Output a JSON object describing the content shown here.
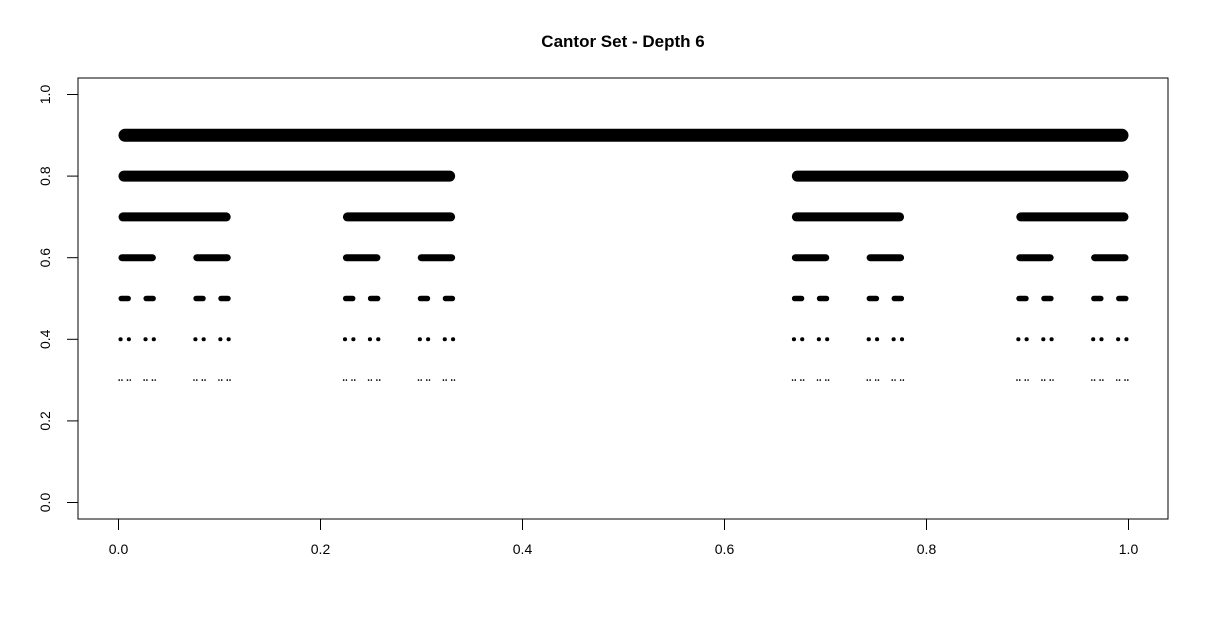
{
  "chart_data": {
    "type": "line",
    "title": "Cantor Set - Depth 6",
    "xlabel": "",
    "ylabel": "",
    "xlim": [
      0,
      1
    ],
    "ylim": [
      0,
      1
    ],
    "x_ticks": [
      0.0,
      0.2,
      0.4,
      0.6,
      0.8,
      1.0
    ],
    "x_tick_labels": [
      "0.0",
      "0.2",
      "0.4",
      "0.6",
      "0.8",
      "1.0"
    ],
    "y_ticks": [
      0.0,
      0.2,
      0.4,
      0.6,
      0.8,
      1.0
    ],
    "y_tick_labels": [
      "0.0",
      "0.2",
      "0.4",
      "0.6",
      "0.8",
      "1.0"
    ],
    "grid": false,
    "legend": "none",
    "line_color": "#000000",
    "depth": 6,
    "levels": [
      {
        "y": 0.9,
        "segments": [
          [
            0,
            1
          ]
        ]
      },
      {
        "y": 0.8,
        "segments": [
          [
            0,
            0.3333
          ],
          [
            0.6667,
            1
          ]
        ]
      },
      {
        "y": 0.7,
        "segments": [
          [
            0,
            0.1111
          ],
          [
            0.2222,
            0.3333
          ],
          [
            0.6667,
            0.7778
          ],
          [
            0.8889,
            1
          ]
        ]
      },
      {
        "y": 0.6,
        "segments": [
          [
            0,
            0.037
          ],
          [
            0.0741,
            0.1111
          ],
          [
            0.2222,
            0.2593
          ],
          [
            0.2963,
            0.3333
          ],
          [
            0.6667,
            0.7037
          ],
          [
            0.7407,
            0.7778
          ],
          [
            0.8889,
            0.9259
          ],
          [
            0.963,
            1
          ]
        ]
      },
      {
        "y": 0.5,
        "segments": [
          [
            0,
            0.0123
          ],
          [
            0.0247,
            0.037
          ],
          [
            0.0741,
            0.0864
          ],
          [
            0.0988,
            0.1111
          ],
          [
            0.2222,
            0.2346
          ],
          [
            0.2469,
            0.2593
          ],
          [
            0.2963,
            0.3086
          ],
          [
            0.321,
            0.3333
          ],
          [
            0.6667,
            0.679
          ],
          [
            0.6914,
            0.7037
          ],
          [
            0.7407,
            0.7531
          ],
          [
            0.7654,
            0.7778
          ],
          [
            0.8889,
            0.9012
          ],
          [
            0.9136,
            0.9259
          ],
          [
            0.963,
            0.9753
          ],
          [
            0.9877,
            1
          ]
        ]
      },
      {
        "y": 0.4,
        "segments": [
          [
            0,
            0.0041
          ],
          [
            0.0082,
            0.0123
          ],
          [
            0.0247,
            0.0288
          ],
          [
            0.0329,
            0.037
          ],
          [
            0.0741,
            0.0782
          ],
          [
            0.0823,
            0.0864
          ],
          [
            0.0988,
            0.1029
          ],
          [
            0.107,
            0.1111
          ],
          [
            0.2222,
            0.2263
          ],
          [
            0.2305,
            0.2346
          ],
          [
            0.2469,
            0.251
          ],
          [
            0.2551,
            0.2593
          ],
          [
            0.2963,
            0.3004
          ],
          [
            0.3045,
            0.3086
          ],
          [
            0.321,
            0.3251
          ],
          [
            0.3292,
            0.3333
          ],
          [
            0.6667,
            0.6708
          ],
          [
            0.6749,
            0.679
          ],
          [
            0.6914,
            0.6955
          ],
          [
            0.6996,
            0.7037
          ],
          [
            0.7407,
            0.7449
          ],
          [
            0.749,
            0.7531
          ],
          [
            0.7654,
            0.7695
          ],
          [
            0.7737,
            0.7778
          ],
          [
            0.8889,
            0.893
          ],
          [
            0.8971,
            0.9012
          ],
          [
            0.9136,
            0.9177
          ],
          [
            0.9218,
            0.9259
          ],
          [
            0.963,
            0.9671
          ],
          [
            0.9712,
            0.9753
          ],
          [
            0.9877,
            0.9918
          ],
          [
            0.9959,
            1
          ]
        ]
      },
      {
        "y": 0.3,
        "segments": [
          [
            0,
            0.0014
          ],
          [
            0.0027,
            0.0041
          ],
          [
            0.0082,
            0.0096
          ],
          [
            0.011,
            0.0123
          ],
          [
            0.0247,
            0.0261
          ],
          [
            0.0274,
            0.0288
          ],
          [
            0.0329,
            0.0343
          ],
          [
            0.0357,
            0.037
          ],
          [
            0.0741,
            0.0754
          ],
          [
            0.0768,
            0.0782
          ],
          [
            0.0823,
            0.0837
          ],
          [
            0.085,
            0.0864
          ],
          [
            0.0988,
            0.1001
          ],
          [
            0.1015,
            0.1029
          ],
          [
            0.107,
            0.1084
          ],
          [
            0.1097,
            0.1111
          ],
          [
            0.2222,
            0.2236
          ],
          [
            0.225,
            0.2263
          ],
          [
            0.2305,
            0.2318
          ],
          [
            0.2332,
            0.2346
          ],
          [
            0.2469,
            0.2483
          ],
          [
            0.2497,
            0.251
          ],
          [
            0.2551,
            0.2565
          ],
          [
            0.2579,
            0.2593
          ],
          [
            0.2963,
            0.2977
          ],
          [
            0.299,
            0.3004
          ],
          [
            0.3045,
            0.3059
          ],
          [
            0.3073,
            0.3086
          ],
          [
            0.321,
            0.3224
          ],
          [
            0.3237,
            0.3251
          ],
          [
            0.3292,
            0.3306
          ],
          [
            0.332,
            0.3333
          ],
          [
            0.6667,
            0.668
          ],
          [
            0.6694,
            0.6708
          ],
          [
            0.6749,
            0.6763
          ],
          [
            0.6776,
            0.679
          ],
          [
            0.6914,
            0.6927
          ],
          [
            0.6941,
            0.6955
          ],
          [
            0.6996,
            0.701
          ],
          [
            0.7023,
            0.7037
          ],
          [
            0.7407,
            0.7421
          ],
          [
            0.7435,
            0.7449
          ],
          [
            0.749,
            0.7503
          ],
          [
            0.7517,
            0.7531
          ],
          [
            0.7654,
            0.7668
          ],
          [
            0.7682,
            0.7695
          ],
          [
            0.7737,
            0.775
          ],
          [
            0.7764,
            0.7778
          ],
          [
            0.8889,
            0.8903
          ],
          [
            0.8916,
            0.893
          ],
          [
            0.8971,
            0.8985
          ],
          [
            0.8999,
            0.9012
          ],
          [
            0.9136,
            0.915
          ],
          [
            0.9163,
            0.9177
          ],
          [
            0.9218,
            0.9232
          ],
          [
            0.9246,
            0.9259
          ],
          [
            0.963,
            0.9643
          ],
          [
            0.9657,
            0.9671
          ],
          [
            0.9712,
            0.9726
          ],
          [
            0.9739,
            0.9753
          ],
          [
            0.9877,
            0.989
          ],
          [
            0.9904,
            0.9918
          ],
          [
            0.9959,
            0.9973
          ],
          [
            0.9986,
            1
          ]
        ]
      }
    ]
  }
}
